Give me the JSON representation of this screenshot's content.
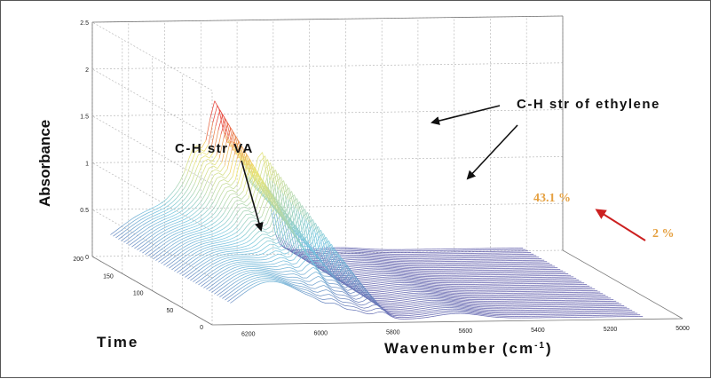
{
  "chart_data": {
    "type": "surface-3d",
    "title": "",
    "xlabel": "Wavenumber (cm",
    "xlabel_sup": "-1",
    "xlabel_end": ")",
    "ylabel": "Absorbance",
    "zlabel": "Time",
    "wavenumber_ticks": [
      "6200",
      "6000",
      "5800",
      "5600",
      "5400",
      "5200",
      "5000"
    ],
    "time_ticks": [
      "200",
      "150",
      "100",
      "50",
      "0"
    ],
    "absorbance_ticks": [
      "0",
      "0.5",
      "1",
      "1.5",
      "2",
      "2.5"
    ],
    "wavenumber_range": [
      6300,
      5000
    ],
    "time_range": [
      0,
      200
    ],
    "absorbance_range": [
      0,
      2.5
    ],
    "peaks": [
      {
        "wavenumber": 6140,
        "absorbance": 0.45,
        "label": "C-H str VA"
      },
      {
        "wavenumber": 5940,
        "absorbance": 1.55,
        "label": "C-H str of ethylene"
      },
      {
        "wavenumber": 5830,
        "absorbance": 1.0,
        "label": ""
      }
    ],
    "annotations": [
      {
        "text": "C-H str VA"
      },
      {
        "text": "C-H str of ethylene"
      },
      {
        "text": "43.1 %"
      },
      {
        "text": "2 %"
      }
    ],
    "colors": {
      "low": "#6b62b0",
      "mid": "#7fd8e8",
      "high": "#e84a4a",
      "annotation_pct": "#e5a040",
      "arrow_red": "#cc2020"
    }
  }
}
